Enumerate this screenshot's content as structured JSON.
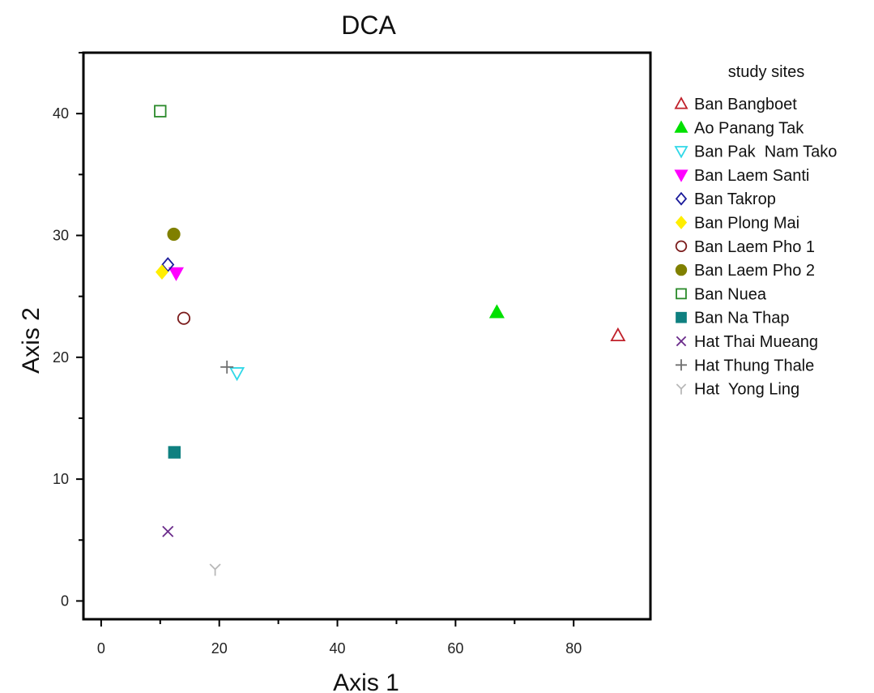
{
  "chart_data": {
    "type": "scatter",
    "title": "DCA",
    "xlabel": "Axis 1",
    "ylabel": "Axis 2",
    "xlim": [
      -3,
      93
    ],
    "ylim": [
      -1.5,
      45
    ],
    "xticks": [
      0,
      20,
      40,
      60,
      80
    ],
    "yticks": [
      0,
      10,
      20,
      30,
      40
    ],
    "grid": false,
    "legend": {
      "title": "study sites",
      "position": "right"
    },
    "series": [
      {
        "name": "Ban Bangboet",
        "marker": "triangle-up-open",
        "color": "#c0202a",
        "x": 87.5,
        "y": 21.8
      },
      {
        "name": "Ao Panang Tak",
        "marker": "triangle-up-filled",
        "color": "#00e000",
        "x": 67.0,
        "y": 23.7
      },
      {
        "name": "Ban Pak  Nam Tako",
        "marker": "triangle-down-open",
        "color": "#30d8e8",
        "x": 23.0,
        "y": 18.7
      },
      {
        "name": "Ban Laem Santi",
        "marker": "triangle-down-filled",
        "color": "#ff00ff",
        "x": 12.7,
        "y": 26.9
      },
      {
        "name": "Ban Takrop",
        "marker": "diamond-open",
        "color": "#1a1a9a",
        "x": 11.3,
        "y": 27.6
      },
      {
        "name": "Ban Plong Mai",
        "marker": "diamond-filled",
        "color": "#ffee00",
        "x": 10.3,
        "y": 27.0
      },
      {
        "name": "Ban Laem Pho 1",
        "marker": "circle-open",
        "color": "#7a1a1a",
        "x": 14.0,
        "y": 23.2
      },
      {
        "name": "Ban Laem Pho 2",
        "marker": "circle-filled",
        "color": "#808000",
        "x": 12.3,
        "y": 30.1
      },
      {
        "name": "Ban Nuea",
        "marker": "square-open",
        "color": "#2a8a2a",
        "x": 10.0,
        "y": 40.2
      },
      {
        "name": "Ban Na Thap",
        "marker": "square-filled",
        "color": "#0f8080",
        "x": 12.4,
        "y": 12.2
      },
      {
        "name": "Hat Thai Mueang",
        "marker": "x",
        "color": "#6a2a8a",
        "x": 11.3,
        "y": 5.7
      },
      {
        "name": "Hat Thung Thale",
        "marker": "plus",
        "color": "#707070",
        "x": 21.3,
        "y": 19.2
      },
      {
        "name": "Hat  Yong Ling",
        "marker": "y",
        "color": "#b8b8b8",
        "x": 19.3,
        "y": 2.6
      }
    ]
  }
}
